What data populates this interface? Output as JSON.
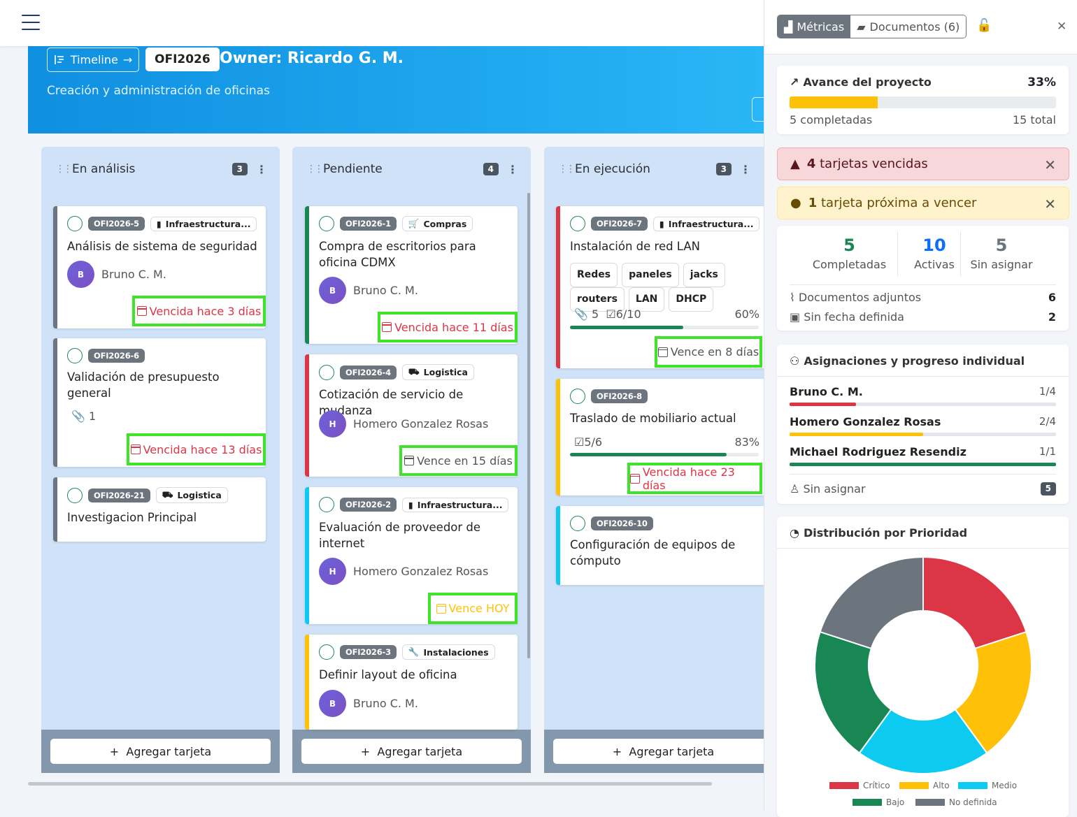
{
  "header": {
    "timeline_label": "Timeline",
    "project_code": "OFI2026",
    "owner": "Owner: Ricardo G. M.",
    "subtitle": "Creación y administración de oficinas"
  },
  "columns": [
    {
      "title": "En análisis",
      "count": "3",
      "add_label": "Agregar tarjeta"
    },
    {
      "title": "Pendiente",
      "count": "4",
      "add_label": "Agregar tarjeta"
    },
    {
      "title": "En ejecución",
      "count": "3",
      "add_label": "Agregar tarjeta"
    }
  ],
  "cards": {
    "c5": {
      "id": "OFI2026-5",
      "category": "Infraestructura...",
      "title": "Análisis de sistema de seguridad",
      "assignee": "Bruno C. M.",
      "initial": "B",
      "due": "Vencida hace 3 días"
    },
    "c6": {
      "id": "OFI2026-6",
      "title": "Validación de presupuesto general",
      "attachments": "1",
      "due": "Vencida hace 13 días"
    },
    "c21": {
      "id": "OFI2026-21",
      "category": "Logistica",
      "title": "Investigacion Principal"
    },
    "c1": {
      "id": "OFI2026-1",
      "category": "Compras",
      "title": "Compra de escritorios para oficina CDMX",
      "assignee": "Bruno C. M.",
      "initial": "B",
      "due": "Vencida hace 11 días"
    },
    "c4": {
      "id": "OFI2026-4",
      "category": "Logistica",
      "title": "Cotización de servicio de mudanza",
      "assignee": "Homero Gonzalez Rosas",
      "initial": "H",
      "due": "Vence en 15 días"
    },
    "c2": {
      "id": "OFI2026-2",
      "category": "Infraestructura...",
      "title": "Evaluación de proveedor de internet",
      "assignee": "Homero Gonzalez Rosas",
      "initial": "H",
      "due": "Vence HOY"
    },
    "c3": {
      "id": "OFI2026-3",
      "category": "Instalaciones",
      "title": "Definir layout de oficina",
      "assignee": "Bruno C. M.",
      "initial": "B"
    },
    "c7": {
      "id": "OFI2026-7",
      "category": "Infraestructura...",
      "title": "Instalación de red LAN",
      "tags": [
        "Redes",
        "paneles",
        "jacks",
        "routers",
        "LAN",
        "DHCP"
      ],
      "attachments": "5",
      "checklist": "6/10",
      "progress": "60%",
      "progress_value": 0.6,
      "due": "Vence en 8 días"
    },
    "c8": {
      "id": "OFI2026-8",
      "title": "Traslado de mobiliario actual",
      "checklist": "5/6",
      "progress": "83%",
      "progress_value": 0.83,
      "due": "Vencida hace 23 días"
    },
    "c10": {
      "id": "OFI2026-10",
      "title": "Configuración de equipos de cómputo"
    }
  },
  "sidebar": {
    "tab_metrics": "Métricas",
    "tab_documents": "Documentos (6)",
    "progress": {
      "label": "Avance del proyecto",
      "percent": "33%",
      "value": 0.33,
      "completed": "5 completadas",
      "total": "15 total"
    },
    "alert_overdue": {
      "count": "4",
      "text": "tarjetas vencidas"
    },
    "alert_soon": {
      "count": "1",
      "text": "tarjeta próxima a vencer"
    },
    "stats": [
      {
        "value": "5",
        "label": "Completadas",
        "color": "#198754"
      },
      {
        "value": "10",
        "label": "Activas",
        "color": "#0d6efd"
      },
      {
        "value": "5",
        "label": "Sin asignar",
        "color": "#6c757d"
      }
    ],
    "docs_label": "Documentos adjuntos",
    "docs_value": "6",
    "nodate_label": "Sin fecha definida",
    "nodate_value": "2",
    "assignments_title": "Asignaciones y progreso individual",
    "assignees": [
      {
        "name": "Bruno C. M.",
        "ratio": "1/4",
        "value": 0.25,
        "color": "#dc3545"
      },
      {
        "name": "Homero Gonzalez Rosas",
        "ratio": "2/4",
        "value": 0.5,
        "color": "#ffc107"
      },
      {
        "name": "Michael Rodriguez Resendiz",
        "ratio": "1/1",
        "value": 1.0,
        "color": "#198754"
      }
    ],
    "unassigned_label": "Sin asignar",
    "unassigned_count": "5",
    "priority_title": "Distribución por Prioridad"
  },
  "chart_data": {
    "type": "pie",
    "title": "Distribución por Prioridad",
    "categories": [
      "Crítico",
      "Alto",
      "Medio",
      "Bajo",
      "No definida"
    ],
    "values": [
      3,
      3,
      3,
      3,
      3
    ],
    "colors": [
      "#dc3545",
      "#ffc107",
      "#0dcaf0",
      "#198754",
      "#6c757d"
    ],
    "legend": "bottom"
  }
}
